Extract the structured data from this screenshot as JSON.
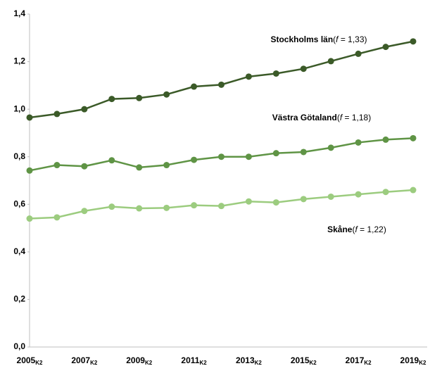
{
  "chart_data": {
    "type": "line",
    "categories": [
      "2005",
      null,
      "2007",
      null,
      "2009",
      null,
      "2011",
      null,
      "2013",
      null,
      "2015",
      null,
      "2017",
      null,
      "2019"
    ],
    "category_suffix": "K2",
    "series": [
      {
        "name": "Stockholms län",
        "note": [
          "(",
          "f",
          " = 1,33)"
        ],
        "color": "#3b5a28",
        "values": [
          0.965,
          0.98,
          1.0,
          1.043,
          1.047,
          1.062,
          1.095,
          1.103,
          1.137,
          1.15,
          1.17,
          1.202,
          1.233,
          1.262,
          1.285
        ]
      },
      {
        "name": "Västra Götaland",
        "note": [
          "(",
          "f",
          " = 1,18)"
        ],
        "color": "#5f9445",
        "values": [
          0.742,
          0.765,
          0.76,
          0.785,
          0.755,
          0.765,
          0.787,
          0.8,
          0.8,
          0.815,
          0.82,
          0.838,
          0.86,
          0.872,
          0.878
        ]
      },
      {
        "name": "Skåne",
        "note": [
          "(",
          "f",
          " = 1,22)"
        ],
        "color": "#9ccc7f",
        "values": [
          0.54,
          0.545,
          0.572,
          0.59,
          0.583,
          0.585,
          0.596,
          0.593,
          0.612,
          0.608,
          0.622,
          0.632,
          0.642,
          0.652,
          0.66
        ]
      }
    ],
    "ylim": [
      0,
      1.4
    ],
    "yticks": [
      {
        "value": 0,
        "label": "0,0"
      },
      {
        "value": 0.2,
        "label": "0,2"
      },
      {
        "value": 0.4,
        "label": "0,4"
      },
      {
        "value": 0.6,
        "label": "0,6"
      },
      {
        "value": 0.8,
        "label": "0,8"
      },
      {
        "value": 1.0,
        "label": "1,0"
      },
      {
        "value": 1.2,
        "label": "1,2"
      },
      {
        "value": 1.4,
        "label": "1,4"
      }
    ],
    "grid": false
  }
}
